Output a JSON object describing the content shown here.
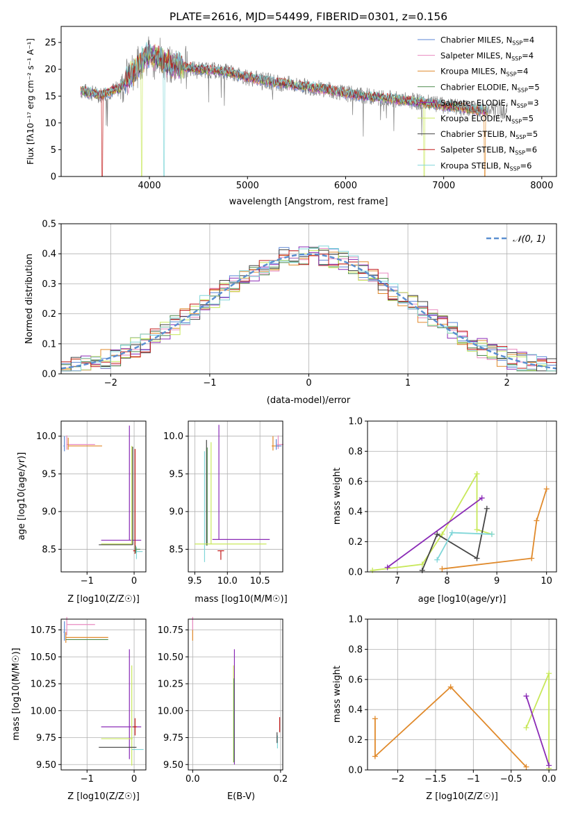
{
  "figure_title": "PLATE=2616, MJD=54499, FIBERID=0301, z=0.156",
  "colors": {
    "Chabrier MILES": "#5b86d6",
    "Salpeter MILES": "#e88ac0",
    "Kroupa MILES": "#e0892a",
    "Chabrier ELODIE": "#4e8a4e",
    "Salpeter ELODIE": "#8a2ab6",
    "Kroupa ELODIE": "#c8e85a",
    "Chabrier STELIB": "#444444",
    "Salpeter STELIB": "#c21a1a",
    "Kroupa STELIB": "#7fd6d8",
    "data": "#808080",
    "normal_curve": "#5b8fd0"
  },
  "chart_data": [
    {
      "type": "line",
      "panel": "spectrum",
      "xlabel": "wavelength [Angstrom, rest frame]",
      "ylabel": "Flux [fλ10⁻¹⁷ erg cm⁻² s⁻¹ A⁻¹]",
      "xlim": [
        3100,
        8150
      ],
      "ylim": [
        0,
        28
      ],
      "xticks": [
        4000,
        5000,
        6000,
        7000,
        8000
      ],
      "yticks": [
        0,
        5,
        10,
        15,
        20,
        25
      ],
      "legend_position": "right",
      "legend": [
        {
          "name": "Chabrier MILES",
          "nssp": "4"
        },
        {
          "name": "Salpeter MILES",
          "nssp": "4"
        },
        {
          "name": "Kroupa MILES",
          "nssp": "4"
        },
        {
          "name": "Chabrier ELODIE",
          "nssp": "5"
        },
        {
          "name": "Salpeter ELODIE",
          "nssp": "3"
        },
        {
          "name": "Kroupa ELODIE",
          "nssp": "5"
        },
        {
          "name": "Chabrier STELIB",
          "nssp": "5"
        },
        {
          "name": "Salpeter STELIB",
          "nssp": "6"
        },
        {
          "name": "Kroupa STELIB",
          "nssp": "6"
        }
      ],
      "continuum": {
        "x": [
          3300,
          3500,
          3700,
          3900,
          4000,
          4200,
          4500,
          4800,
          5000,
          5200,
          5500,
          5800,
          6000,
          6300,
          6600,
          6800,
          7000,
          7200,
          7400
        ],
        "y": [
          16.0,
          15.2,
          16.5,
          21.0,
          23.0,
          21.0,
          20.0,
          19.5,
          18.5,
          17.8,
          17.0,
          16.3,
          15.5,
          14.8,
          14.2,
          13.8,
          13.2,
          12.8,
          12.3
        ]
      },
      "model_drops": [
        {
          "series": "Salpeter STELIB",
          "x": 3520
        },
        {
          "series": "Kroupa ELODIE",
          "x": 3920
        },
        {
          "series": "Kroupa STELIB",
          "x": 4150
        },
        {
          "series": "Kroupa ELODIE",
          "x": 6800
        },
        {
          "series": "Kroupa MILES",
          "x": 7420
        }
      ]
    },
    {
      "type": "line",
      "panel": "residuals",
      "xlabel": "(data-model)/error",
      "ylabel": "Normed distribution",
      "xlim": [
        -2.5,
        2.5
      ],
      "ylim": [
        0,
        0.5
      ],
      "xticks": [
        -2,
        -1,
        0,
        1,
        2
      ],
      "yticks": [
        0.0,
        0.1,
        0.2,
        0.3,
        0.4,
        0.5
      ],
      "grid": true,
      "legend_position": "top-right",
      "legend": [
        "𝒩(0, 1)"
      ],
      "series_note": "step histograms for nine model fits plus a dashed normal curve"
    },
    {
      "type": "scatter",
      "panel": "age-vs-Z",
      "xlabel": "Z [log10(Z/Z☉)]",
      "ylabel": "age [log10(age/yr)]",
      "xlim": [
        -1.55,
        0.25
      ],
      "ylim": [
        8.2,
        10.2
      ],
      "xticks": [
        -1,
        0
      ],
      "yticks": [
        8.5,
        9.0,
        9.5,
        10.0
      ],
      "grid": true
    },
    {
      "type": "scatter",
      "panel": "age-vs-mass",
      "xlabel": "mass [log10(M/M☉)]",
      "xlim": [
        9.4,
        10.85
      ],
      "ylim": [
        8.2,
        10.2
      ],
      "xticks": [
        9.5,
        10.0,
        10.5
      ],
      "yticks": [
        8.5,
        9.0,
        9.5,
        10.0
      ],
      "grid": true
    },
    {
      "type": "line",
      "panel": "mass-weight-vs-age",
      "xlabel": "age [log10(age/yr)]",
      "ylabel": "mass weight",
      "xlim": [
        6.4,
        10.2
      ],
      "ylim": [
        0,
        1.0
      ],
      "xticks": [
        7,
        8,
        9,
        10
      ],
      "yticks": [
        0.0,
        0.2,
        0.4,
        0.6,
        0.8,
        1.0
      ],
      "grid": true,
      "series": [
        {
          "name": "Kroupa ELODIE",
          "x": [
            6.5,
            7.5,
            7.9,
            8.6,
            8.6,
            8.9
          ],
          "y": [
            0.01,
            0.05,
            0.25,
            0.65,
            0.28,
            0.25
          ]
        },
        {
          "name": "Salpeter ELODIE",
          "x": [
            6.8,
            8.7
          ],
          "y": [
            0.03,
            0.49
          ]
        },
        {
          "name": "Chabrier STELIB",
          "x": [
            7.5,
            7.8,
            8.6,
            8.8
          ],
          "y": [
            0.01,
            0.25,
            0.09,
            0.42
          ]
        },
        {
          "name": "Kroupa STELIB",
          "x": [
            7.8,
            8.1,
            8.9
          ],
          "y": [
            0.08,
            0.26,
            0.25
          ]
        },
        {
          "name": "Kroupa MILES",
          "x": [
            7.9,
            9.7,
            9.8,
            10.0
          ],
          "y": [
            0.02,
            0.09,
            0.34,
            0.55
          ]
        }
      ]
    },
    {
      "type": "scatter",
      "panel": "mass-vs-Z",
      "xlabel": "Z [log10(Z/Z☉)]",
      "ylabel": "mass [log10(M/M☉)]",
      "xlim": [
        -1.55,
        0.25
      ],
      "ylim": [
        9.45,
        10.85
      ],
      "xticks": [
        -1,
        0
      ],
      "yticks": [
        9.5,
        9.75,
        10.0,
        10.25,
        10.5,
        10.75
      ],
      "grid": true
    },
    {
      "type": "scatter",
      "panel": "mass-vs-EBV",
      "xlabel": "E(B-V)",
      "xlim": [
        -0.01,
        0.205
      ],
      "ylim": [
        9.45,
        10.85
      ],
      "xticks": [
        0.0,
        0.2
      ],
      "yticks": [
        9.5,
        9.75,
        10.0,
        10.25,
        10.5,
        10.75
      ],
      "grid": true
    },
    {
      "type": "line",
      "panel": "mass-weight-vs-Z",
      "xlabel": "Z [log10(Z/Z☉)]",
      "ylabel": "mass weight",
      "xlim": [
        -2.4,
        0.1
      ],
      "ylim": [
        0,
        1.0
      ],
      "xticks": [
        -2.0,
        -1.5,
        -1.0,
        -0.5,
        0.0
      ],
      "yticks": [
        0.0,
        0.2,
        0.4,
        0.6,
        0.8,
        1.0
      ],
      "grid": true,
      "series": [
        {
          "name": "Kroupa MILES",
          "x": [
            -2.3,
            -2.3,
            -1.3,
            -0.3
          ],
          "y": [
            0.34,
            0.09,
            0.55,
            0.02
          ]
        },
        {
          "name": "Kroupa ELODIE",
          "x": [
            -0.3,
            0.0,
            0.0
          ],
          "y": [
            0.28,
            0.64,
            0.01
          ]
        },
        {
          "name": "Salpeter ELODIE",
          "x": [
            -0.3,
            0.0
          ],
          "y": [
            0.49,
            0.03
          ]
        }
      ]
    }
  ]
}
